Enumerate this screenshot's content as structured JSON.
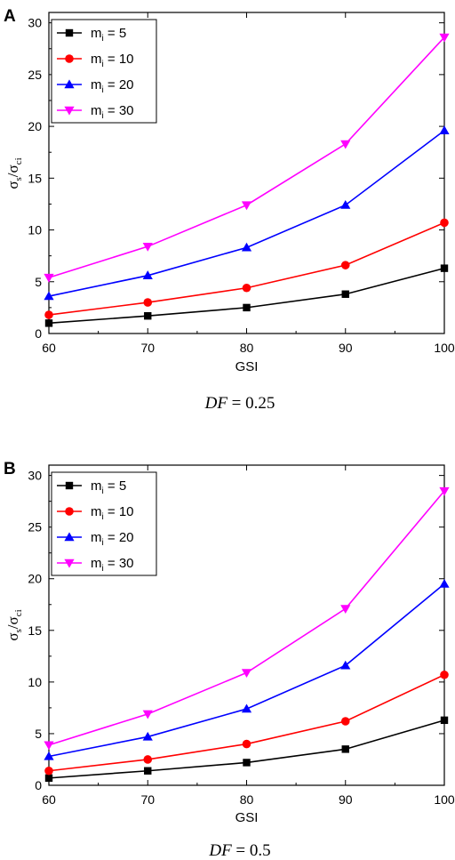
{
  "chart_data": [
    {
      "type": "line",
      "panel_label": "A",
      "xlabel": "GSI",
      "ylabel": {
        "main1": "σ",
        "sub1": "s",
        "slash": "/",
        "main2": "σ",
        "sub2": "ci"
      },
      "caption": {
        "italic": "DF",
        "rest": " = 0.25"
      },
      "x": [
        60,
        70,
        80,
        90,
        100
      ],
      "xlim": [
        60,
        100
      ],
      "ylim": [
        0,
        31
      ],
      "xticks": [
        60,
        70,
        80,
        90,
        100
      ],
      "yticks": [
        0,
        5,
        10,
        15,
        20,
        25,
        30
      ],
      "grid": false,
      "legend_position": "top-left",
      "series": [
        {
          "name": "m_i = 5",
          "name_main": "m",
          "name_sub": "i",
          "name_rest": " = 5",
          "color": "#000000",
          "marker": "square",
          "values": [
            1.0,
            1.7,
            2.5,
            3.8,
            6.3
          ]
        },
        {
          "name": "m_i = 10",
          "name_main": "m",
          "name_sub": "i",
          "name_rest": " = 10",
          "color": "#ff0000",
          "marker": "circle",
          "values": [
            1.8,
            3.0,
            4.4,
            6.6,
            10.7
          ]
        },
        {
          "name": "m_i = 20",
          "name_main": "m",
          "name_sub": "i",
          "name_rest": " = 20",
          "color": "#0000ff",
          "marker": "triangle-up",
          "values": [
            3.6,
            5.6,
            8.3,
            12.4,
            19.6
          ]
        },
        {
          "name": "m_i = 30",
          "name_main": "m",
          "name_sub": "i",
          "name_rest": " = 30",
          "color": "#ff00ff",
          "marker": "triangle-down",
          "values": [
            5.4,
            8.4,
            12.4,
            18.3,
            28.6
          ]
        }
      ]
    },
    {
      "type": "line",
      "panel_label": "B",
      "xlabel": "GSI",
      "ylabel": {
        "main1": "σ",
        "sub1": "s",
        "slash": "/",
        "main2": "σ",
        "sub2": "ci"
      },
      "caption": {
        "italic": "DF",
        "rest": " = 0.5"
      },
      "x": [
        60,
        70,
        80,
        90,
        100
      ],
      "xlim": [
        60,
        100
      ],
      "ylim": [
        0,
        31
      ],
      "xticks": [
        60,
        70,
        80,
        90,
        100
      ],
      "yticks": [
        0,
        5,
        10,
        15,
        20,
        25,
        30
      ],
      "grid": false,
      "legend_position": "top-left",
      "series": [
        {
          "name": "m_i = 5",
          "name_main": "m",
          "name_sub": "i",
          "name_rest": " = 5",
          "color": "#000000",
          "marker": "square",
          "values": [
            0.7,
            1.4,
            2.2,
            3.5,
            6.3
          ]
        },
        {
          "name": "m_i = 10",
          "name_main": "m",
          "name_sub": "i",
          "name_rest": " = 10",
          "color": "#ff0000",
          "marker": "circle",
          "values": [
            1.4,
            2.5,
            4.0,
            6.2,
            10.7
          ]
        },
        {
          "name": "m_i = 20",
          "name_main": "m",
          "name_sub": "i",
          "name_rest": " = 20",
          "color": "#0000ff",
          "marker": "triangle-up",
          "values": [
            2.8,
            4.7,
            7.4,
            11.6,
            19.5
          ]
        },
        {
          "name": "m_i = 30",
          "name_main": "m",
          "name_sub": "i",
          "name_rest": " = 30",
          "color": "#ff00ff",
          "marker": "triangle-down",
          "values": [
            3.9,
            6.9,
            10.9,
            17.1,
            28.5
          ]
        }
      ]
    }
  ]
}
